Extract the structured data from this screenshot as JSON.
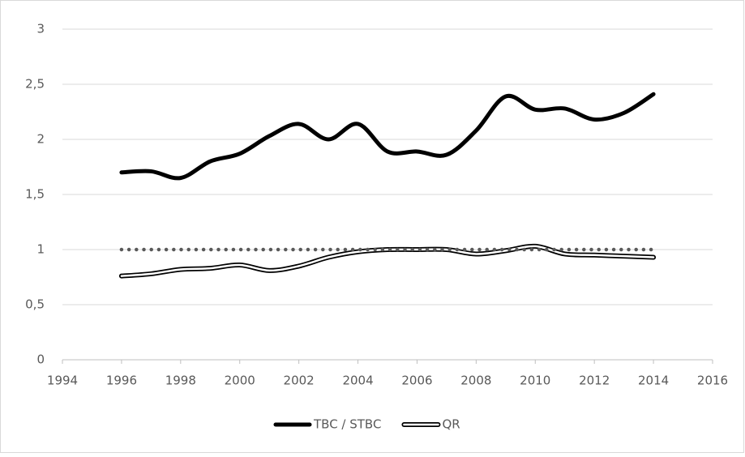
{
  "chart_data": {
    "type": "line",
    "x": [
      1996,
      1997,
      1998,
      1999,
      2000,
      2001,
      2002,
      2003,
      2004,
      2005,
      2006,
      2007,
      2008,
      2009,
      2010,
      2011,
      2012,
      2013,
      2014
    ],
    "series": [
      {
        "name": "TBC / STBC",
        "color": "#000000",
        "style": "thick",
        "values": [
          1.7,
          1.71,
          1.65,
          1.8,
          1.87,
          2.03,
          2.14,
          2.0,
          2.14,
          1.89,
          1.89,
          1.86,
          2.08,
          2.39,
          2.27,
          2.28,
          2.18,
          2.24,
          2.41
        ]
      },
      {
        "name": "QR",
        "color": "#000000",
        "style": "double",
        "values": [
          0.76,
          0.78,
          0.82,
          0.83,
          0.86,
          0.81,
          0.85,
          0.93,
          0.98,
          1.0,
          1.0,
          1.0,
          0.96,
          0.99,
          1.03,
          0.96,
          0.95,
          0.94,
          0.93
        ]
      },
      {
        "color": "#595959",
        "style": "dotted",
        "values": [
          1,
          1,
          1,
          1,
          1,
          1,
          1,
          1,
          1,
          1,
          1,
          1,
          1,
          1,
          1,
          1,
          1,
          1,
          1
        ]
      }
    ],
    "xlim": [
      1994,
      2016
    ],
    "xticks": [
      1994,
      1996,
      1998,
      2000,
      2002,
      2004,
      2006,
      2008,
      2010,
      2012,
      2014,
      2016
    ],
    "ylim": [
      0,
      3
    ],
    "yticks": [
      0,
      {
        "value": 0.5,
        "label": "0,5"
      },
      1,
      {
        "value": 1.5,
        "label": "1,5"
      },
      2,
      {
        "value": 2.5,
        "label": "2,5"
      },
      3
    ],
    "grid": true,
    "legend": "bottom"
  }
}
